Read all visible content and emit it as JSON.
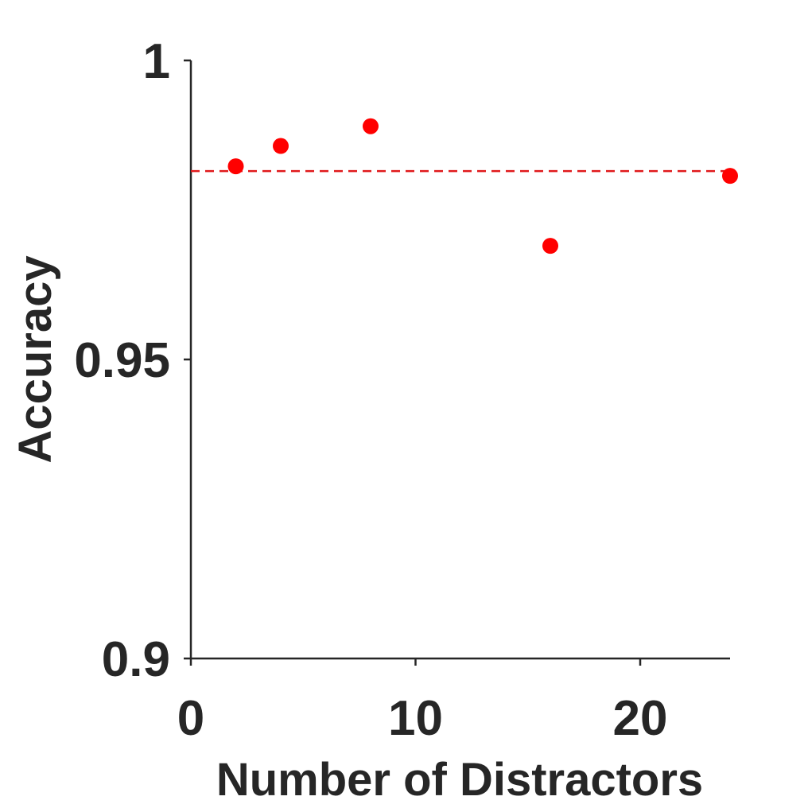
{
  "chart_data": {
    "type": "scatter",
    "xlabel": "Number of Distractors",
    "ylabel": "Accuracy",
    "xlim": [
      0,
      24
    ],
    "ylim": [
      0.9,
      1.0
    ],
    "x_ticks": [
      0,
      10,
      20
    ],
    "x_tick_labels": [
      "0",
      "10",
      "20"
    ],
    "y_ticks": [
      0.9,
      0.95,
      1.0
    ],
    "y_tick_labels": [
      "0.9",
      "0.95",
      "1"
    ],
    "grid": false,
    "series": [
      {
        "x": [
          2,
          4,
          8,
          16,
          24
        ],
        "y": [
          0.9823,
          0.9857,
          0.989,
          0.969,
          0.9807
        ],
        "color": "#ff0000",
        "marker": "circle"
      }
    ],
    "reference_line": {
      "y": 0.9815,
      "style": "dashed",
      "color": "#e0191b"
    }
  }
}
